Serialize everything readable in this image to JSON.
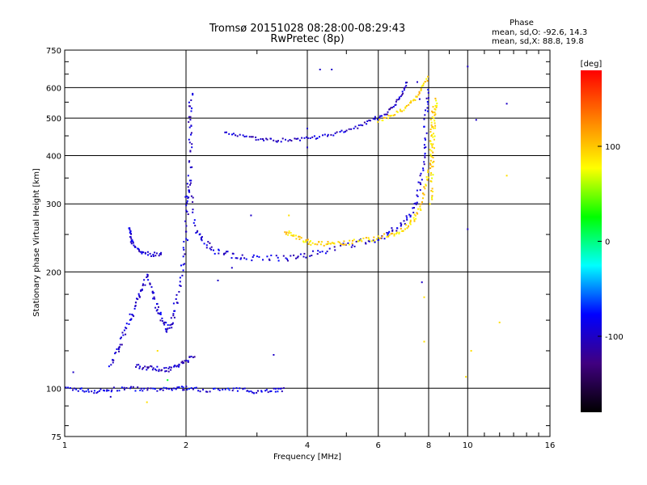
{
  "chart_data": {
    "type": "scatter",
    "title": "Tromsø 20151028 08:28:00-08:29:43",
    "subtitle": "RwPretec (8p)",
    "xlabel": "Frequency [MHz]",
    "ylabel": "Stationary phase Virtual Height [km]",
    "xscale": "log",
    "yscale": "log",
    "xlim": [
      1,
      16
    ],
    "ylim": [
      75,
      750
    ],
    "x_ticks": [
      1,
      2,
      4,
      6,
      8,
      10,
      16
    ],
    "y_ticks": [
      75,
      100,
      200,
      300,
      400,
      500,
      600,
      750
    ],
    "grid": true,
    "stats": {
      "heading": "Phase",
      "o_line": "mean, sd,O:  -92.6, 14.3",
      "x_line": "mean, sd,X:  88.8, 19.8"
    },
    "colorbar": {
      "label": "[deg]",
      "ticks": [
        100,
        0,
        -100
      ],
      "range": [
        -180,
        180
      ],
      "colors": [
        "#ff0000",
        "#ff8000",
        "#ffff00",
        "#00ff00",
        "#00ffff",
        "#0000ff",
        "#400080",
        "#000000"
      ]
    },
    "traces": [
      {
        "phase": -90,
        "noise": 0.012,
        "points": [
          [
            1.0,
            100
          ],
          [
            1.1,
            99
          ],
          [
            1.2,
            98
          ],
          [
            1.3,
            99
          ],
          [
            1.45,
            100
          ],
          [
            1.6,
            99
          ],
          [
            1.75,
            99
          ],
          [
            1.9,
            100
          ],
          [
            2.0,
            100
          ],
          [
            2.2,
            99
          ],
          [
            2.5,
            99
          ],
          [
            2.8,
            99
          ],
          [
            3.0,
            98
          ],
          [
            3.3,
            99
          ],
          [
            3.5,
            99
          ]
        ]
      },
      {
        "phase": -95,
        "noise": 0.02,
        "points": [
          [
            1.3,
            115
          ],
          [
            1.35,
            125
          ],
          [
            1.4,
            135
          ],
          [
            1.45,
            150
          ],
          [
            1.5,
            165
          ],
          [
            1.55,
            180
          ],
          [
            1.6,
            195
          ],
          [
            1.65,
            175
          ],
          [
            1.7,
            160
          ],
          [
            1.75,
            150
          ],
          [
            1.8,
            140
          ],
          [
            1.85,
            150
          ],
          [
            1.9,
            170
          ],
          [
            1.95,
            200
          ],
          [
            2.0,
            240
          ],
          [
            2.02,
            300
          ],
          [
            2.05,
            380
          ],
          [
            2.05,
            450
          ],
          [
            2.05,
            520
          ],
          [
            2.06,
            580
          ]
        ]
      },
      {
        "phase": -100,
        "noise": 0.015,
        "points": [
          [
            1.5,
            115
          ],
          [
            1.6,
            113
          ],
          [
            1.7,
            112
          ],
          [
            1.8,
            112
          ],
          [
            1.9,
            114
          ],
          [
            2.0,
            118
          ],
          [
            2.1,
            120
          ]
        ]
      },
      {
        "phase": -95,
        "noise": 0.012,
        "points": [
          [
            1.45,
            260
          ],
          [
            1.46,
            245
          ],
          [
            1.48,
            235
          ],
          [
            1.55,
            225
          ],
          [
            1.65,
            222
          ],
          [
            1.75,
            222
          ]
        ]
      },
      {
        "phase": -95,
        "noise": 0.02,
        "points": [
          [
            2.0,
            300
          ],
          [
            2.05,
            340
          ],
          [
            2.1,
            260
          ],
          [
            2.2,
            240
          ],
          [
            2.35,
            228
          ],
          [
            2.55,
            222
          ],
          [
            2.8,
            218
          ],
          [
            3.2,
            216
          ],
          [
            3.6,
            218
          ],
          [
            4.0,
            222
          ],
          [
            4.5,
            228
          ],
          [
            5.2,
            236
          ],
          [
            5.8,
            242
          ],
          [
            6.3,
            250
          ],
          [
            6.8,
            262
          ],
          [
            7.2,
            280
          ],
          [
            7.5,
            310
          ],
          [
            7.7,
            360
          ],
          [
            7.8,
            420
          ],
          [
            7.9,
            520
          ],
          [
            7.95,
            600
          ]
        ]
      },
      {
        "phase": 95,
        "noise": 0.015,
        "points": [
          [
            3.5,
            255
          ],
          [
            3.7,
            248
          ],
          [
            3.9,
            242
          ],
          [
            4.1,
            238
          ],
          [
            4.4,
            236
          ],
          [
            4.7,
            236
          ],
          [
            5.1,
            238
          ],
          [
            5.6,
            242
          ],
          [
            6.1,
            246
          ],
          [
            6.6,
            252
          ],
          [
            7.0,
            260
          ],
          [
            7.3,
            272
          ],
          [
            7.6,
            290
          ],
          [
            7.8,
            320
          ],
          [
            8.0,
            360
          ],
          [
            8.1,
            420
          ],
          [
            8.15,
            480
          ],
          [
            8.2,
            540
          ]
        ]
      },
      {
        "phase": -100,
        "noise": 0.01,
        "points": [
          [
            2.5,
            460
          ],
          [
            2.8,
            450
          ],
          [
            3.1,
            440
          ],
          [
            3.4,
            438
          ],
          [
            3.8,
            440
          ],
          [
            4.2,
            446
          ],
          [
            4.7,
            455
          ],
          [
            5.2,
            470
          ],
          [
            5.7,
            490
          ],
          [
            6.2,
            510
          ],
          [
            6.6,
            540
          ],
          [
            6.9,
            580
          ],
          [
            7.1,
            630
          ]
        ]
      },
      {
        "phase": 95,
        "noise": 0.01,
        "points": [
          [
            6.0,
            490
          ],
          [
            6.5,
            510
          ],
          [
            7.0,
            530
          ],
          [
            7.4,
            560
          ],
          [
            7.7,
            600
          ],
          [
            8.0,
            640
          ]
        ]
      },
      {
        "phase": 90,
        "noise": 0.015,
        "points": [
          [
            8.1,
            300
          ],
          [
            8.15,
            350
          ],
          [
            8.2,
            400
          ],
          [
            8.25,
            460
          ],
          [
            8.3,
            520
          ],
          [
            8.35,
            560
          ]
        ]
      }
    ],
    "scatter_points": [
      {
        "x": 4.3,
        "y": 668,
        "phase": -100
      },
      {
        "x": 4.6,
        "y": 668,
        "phase": -100
      },
      {
        "x": 10.0,
        "y": 680,
        "phase": -100
      },
      {
        "x": 12.5,
        "y": 545,
        "phase": -100
      },
      {
        "x": 10.5,
        "y": 495,
        "phase": -100
      },
      {
        "x": 12.5,
        "y": 355,
        "phase": 90
      },
      {
        "x": 10.0,
        "y": 258,
        "phase": -100
      },
      {
        "x": 12.0,
        "y": 148,
        "phase": 90
      },
      {
        "x": 10.2,
        "y": 125,
        "phase": 90
      },
      {
        "x": 9.9,
        "y": 107,
        "phase": 90
      },
      {
        "x": 7.7,
        "y": 188,
        "phase": -100
      },
      {
        "x": 7.8,
        "y": 172,
        "phase": 90
      },
      {
        "x": 7.8,
        "y": 132,
        "phase": 90
      },
      {
        "x": 3.3,
        "y": 122,
        "phase": -100
      },
      {
        "x": 4.0,
        "y": 470,
        "phase": -100
      },
      {
        "x": 4.0,
        "y": 420,
        "phase": -100
      },
      {
        "x": 2.4,
        "y": 190,
        "phase": -100
      },
      {
        "x": 2.6,
        "y": 205,
        "phase": -100
      },
      {
        "x": 1.3,
        "y": 95,
        "phase": -100
      },
      {
        "x": 1.05,
        "y": 110,
        "phase": -100
      },
      {
        "x": 1.7,
        "y": 125,
        "phase": 90
      },
      {
        "x": 1.8,
        "y": 105,
        "phase": 20
      },
      {
        "x": 1.6,
        "y": 92,
        "phase": 90
      },
      {
        "x": 3.6,
        "y": 280,
        "phase": 90
      },
      {
        "x": 2.9,
        "y": 280,
        "phase": -100
      },
      {
        "x": 7.5,
        "y": 620,
        "phase": -100
      },
      {
        "x": 7.6,
        "y": 560,
        "phase": -100
      }
    ]
  }
}
